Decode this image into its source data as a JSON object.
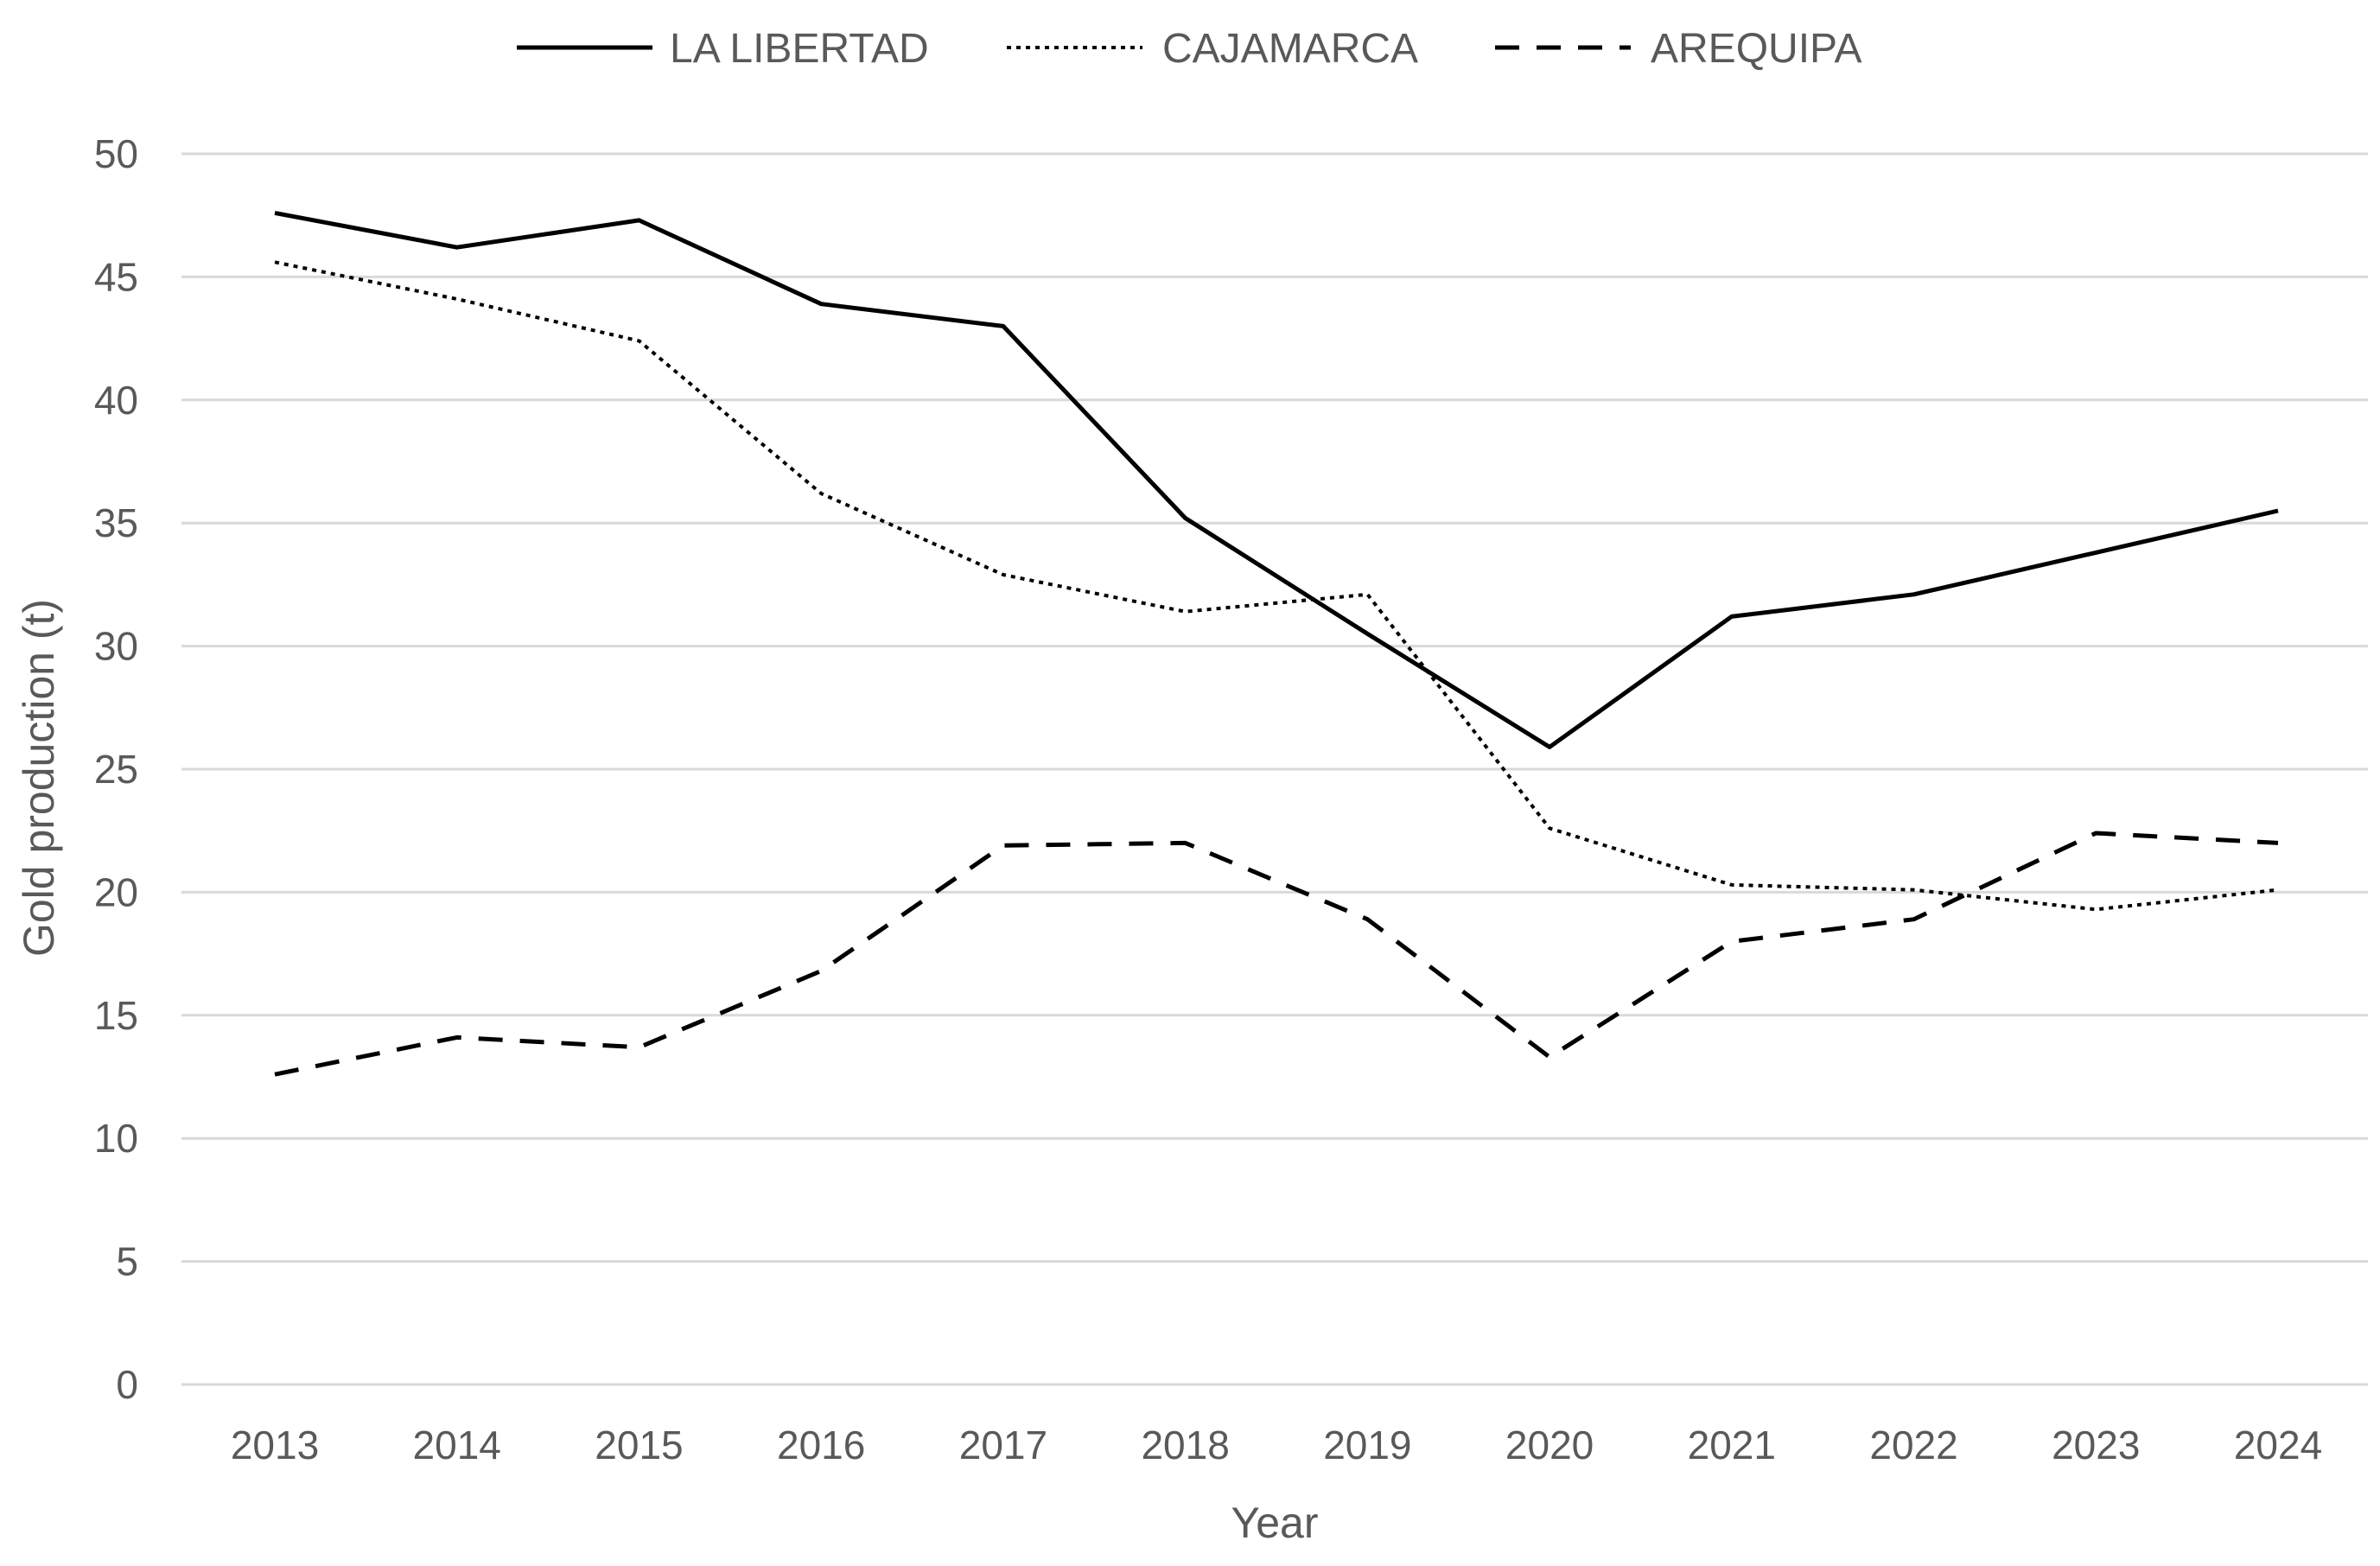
{
  "chart_data": {
    "type": "line",
    "title": "",
    "xlabel": "Year",
    "ylabel": "Gold production (t)",
    "ylim": [
      0,
      50
    ],
    "yticks": [
      0,
      5,
      10,
      15,
      20,
      25,
      30,
      35,
      40,
      45,
      50
    ],
    "grid": true,
    "legend_position": "top-center",
    "categories": [
      "2013",
      "2014",
      "2015",
      "2016",
      "2017",
      "2018",
      "2019",
      "2020",
      "2021",
      "2022",
      "2023",
      "2024"
    ],
    "series": [
      {
        "name": "LA LIBERTAD",
        "style": "solid",
        "color": "#000000",
        "values": [
          47.6,
          46.2,
          47.3,
          43.9,
          43.0,
          35.2,
          30.5,
          25.9,
          31.2,
          32.1,
          33.8,
          35.5
        ]
      },
      {
        "name": "CAJAMARCA",
        "style": "dotted",
        "color": "#000000",
        "values": [
          45.6,
          44.1,
          42.4,
          36.2,
          32.9,
          31.4,
          32.1,
          22.6,
          20.3,
          20.1,
          19.3,
          20.1
        ]
      },
      {
        "name": "AREQUIPA",
        "style": "dashed",
        "color": "#000000",
        "values": [
          12.6,
          14.1,
          13.7,
          16.8,
          21.9,
          22.0,
          18.9,
          13.3,
          18.0,
          18.9,
          22.4,
          22.0
        ]
      }
    ]
  },
  "colors": {
    "grid": "#d9d9d9",
    "text": "#595959",
    "line": "#000000"
  }
}
